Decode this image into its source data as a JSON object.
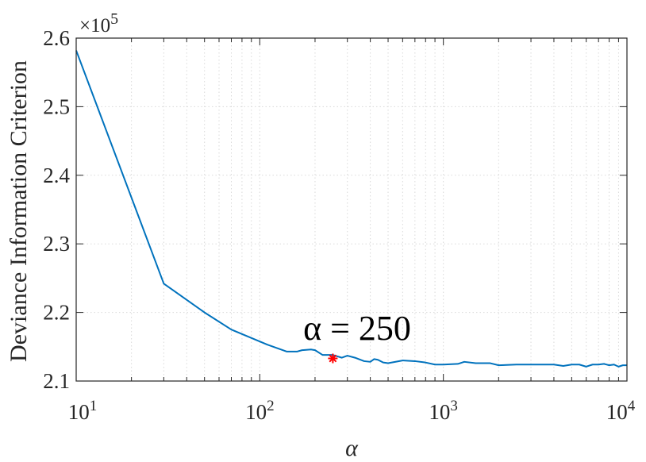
{
  "chart_data": {
    "type": "line",
    "xscale": "log",
    "xlim": [
      10,
      10000
    ],
    "ylim": [
      2.1,
      2.6
    ],
    "y_multiplier": "×10",
    "y_multiplier_exp": "5",
    "xlabel": "α",
    "ylabel": "Deviance Information Criterion",
    "grid": true,
    "x_tick_labels": [
      {
        "base": "10",
        "exp": "1",
        "value": 10
      },
      {
        "base": "10",
        "exp": "2",
        "value": 100
      },
      {
        "base": "10",
        "exp": "3",
        "value": 1000
      },
      {
        "base": "10",
        "exp": "4",
        "value": 10000
      }
    ],
    "y_ticks": [
      {
        "label": "2.1",
        "value": 2.1
      },
      {
        "label": "2.2",
        "value": 2.2
      },
      {
        "label": "2.3",
        "value": 2.3
      },
      {
        "label": "2.4",
        "value": 2.4
      },
      {
        "label": "2.5",
        "value": 2.5
      },
      {
        "label": "2.6",
        "value": 2.6
      }
    ],
    "series": [
      {
        "color": "#0072BD",
        "x": [
          10,
          30,
          50,
          70,
          110,
          140,
          160,
          170,
          190,
          200,
          220,
          250,
          280,
          300,
          330,
          370,
          400,
          420,
          440,
          470,
          500,
          600,
          700,
          800,
          900,
          1000,
          1200,
          1300,
          1500,
          1800,
          2000,
          2500,
          3000,
          3500,
          4000,
          4500,
          5000,
          5500,
          6000,
          6500,
          7000,
          7500,
          8000,
          8500,
          9000,
          9500,
          10000
        ],
        "y": [
          2.582,
          2.242,
          2.2,
          2.175,
          2.153,
          2.143,
          2.143,
          2.145,
          2.146,
          2.145,
          2.138,
          2.138,
          2.134,
          2.137,
          2.134,
          2.129,
          2.128,
          2.132,
          2.131,
          2.127,
          2.126,
          2.13,
          2.129,
          2.127,
          2.124,
          2.124,
          2.125,
          2.128,
          2.126,
          2.126,
          2.123,
          2.124,
          2.124,
          2.124,
          2.124,
          2.122,
          2.124,
          2.124,
          2.121,
          2.124,
          2.124,
          2.125,
          2.123,
          2.124,
          2.121,
          2.123,
          2.123
        ]
      }
    ],
    "highlight": {
      "x": 250,
      "y": 2.133,
      "color": "#FF0000",
      "marker": "*"
    },
    "annotation": {
      "text": "α = 250",
      "x": 250,
      "y": 2.158
    }
  }
}
